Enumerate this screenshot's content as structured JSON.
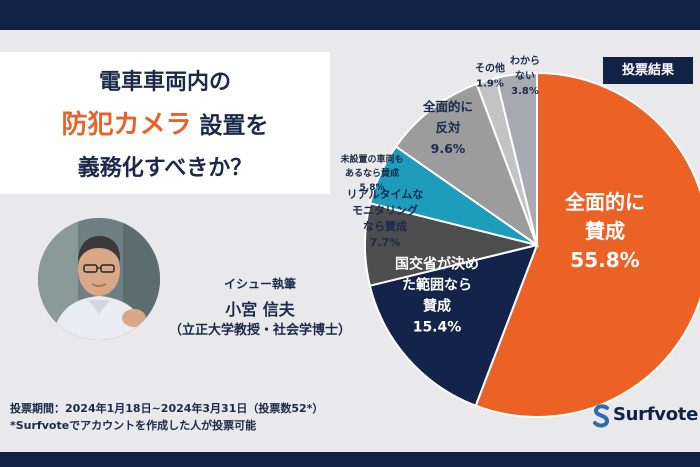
{
  "header": {
    "line1": "電車車両内の",
    "line2_accent": "防犯カメラ",
    "line2_rest": " 設置を",
    "line3": "義務化すべきか？"
  },
  "author": {
    "label": "イシュー執筆",
    "name": "小宮 信夫",
    "affiliation": "（立正大学教授・社会学博士）"
  },
  "footer": {
    "period": "投票期間：2024年1月18日~2024年3月31日（投票数52*）",
    "note": "*Surfvoteでアカウントを作成した人が投票可能"
  },
  "badge": "投票結果",
  "brand": "Surfvote",
  "chart_data": {
    "type": "pie",
    "title": "投票結果",
    "start_angle_deg": 0,
    "direction": "clockwise",
    "slices": [
      {
        "label_lines": [
          "全面的に",
          "賛成"
        ],
        "value_text": "55.8%",
        "value": 55.8,
        "color": "#ec6225",
        "text_color": "#ffffff"
      },
      {
        "label_lines": [
          "国交省が決め",
          "た範囲なら",
          "賛成"
        ],
        "value_text": "15.4%",
        "value": 15.4,
        "color": "#13234a",
        "text_color": "#ffffff"
      },
      {
        "label_lines": [
          "リアルタイムな",
          "モニタリング",
          "なら賛成"
        ],
        "value_text": "7.7%",
        "value": 7.7,
        "color": "#4d4d4d",
        "text_color": "#1b2a4a"
      },
      {
        "label_lines": [
          "未設置の車両も",
          "あるなら賛成"
        ],
        "value_text": "5.8%",
        "value": 5.8,
        "color": "#1d9dbb",
        "text_color": "#1b2a4a"
      },
      {
        "label_lines": [
          "全面的に",
          "反対"
        ],
        "value_text": "9.6%",
        "value": 9.6,
        "color": "#9c9c9c",
        "text_color": "#1b2a4a"
      },
      {
        "label_lines": [
          "その他"
        ],
        "value_text": "1.9%",
        "value": 1.9,
        "color": "#c3c3c3",
        "text_color": "#1b2a4a"
      },
      {
        "label_lines": [
          "わから",
          "ない"
        ],
        "value_text": "3.8%",
        "value": 3.8,
        "color": "#a9a9b3",
        "text_color": "#1b2a4a"
      }
    ]
  }
}
